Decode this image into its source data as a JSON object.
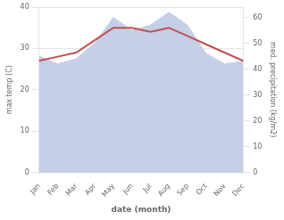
{
  "chart_data": {
    "type": "line",
    "categories": [
      "Jan",
      "Feb",
      "Mar",
      "Apr",
      "May",
      "Jun",
      "Jul",
      "Aug",
      "Sep",
      "Oct",
      "Nov",
      "Dec"
    ],
    "series": [
      {
        "type": "line",
        "color": "#c0504d",
        "values": [
          27,
          28,
          29,
          32,
          35,
          35,
          34,
          35,
          33,
          31,
          29,
          27
        ]
      },
      {
        "type": "area",
        "color": "#c5cfe8",
        "axis": "y2",
        "values": [
          45,
          42,
          44,
          50,
          60,
          55,
          57,
          62,
          57,
          46,
          42,
          43
        ]
      }
    ],
    "xlabel": "date (month)",
    "ylabel": "max temp (C)",
    "y2label": "med. precipitation (kg/m2)",
    "ylim": [
      0,
      40
    ],
    "yticks": [
      0,
      10,
      20,
      30,
      40
    ],
    "y2lim": [
      0,
      64
    ],
    "y2ticks": [
      0,
      10,
      20,
      30,
      40,
      50,
      60
    ],
    "grid": true
  }
}
